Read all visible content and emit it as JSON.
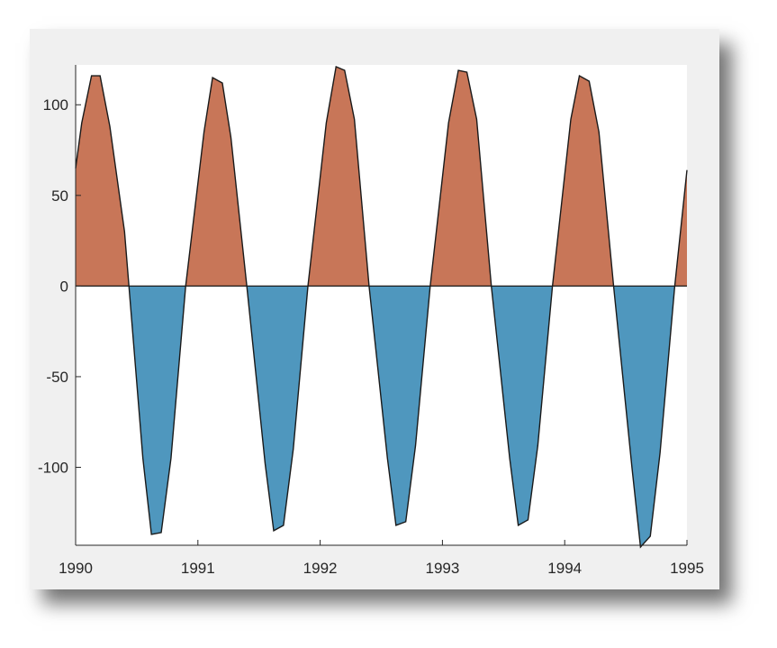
{
  "chart_data": {
    "type": "area",
    "title": "",
    "xlabel": "",
    "ylabel": "",
    "xlim": [
      1990,
      1995
    ],
    "ylim": [
      -143,
      122
    ],
    "xticks": [
      {
        "value": 1990,
        "label": "1990"
      },
      {
        "value": 1991,
        "label": "1991"
      },
      {
        "value": 1992,
        "label": "1992"
      },
      {
        "value": 1993,
        "label": "1993"
      },
      {
        "value": 1994,
        "label": "1994"
      },
      {
        "value": 1995,
        "label": "1995"
      }
    ],
    "yticks": [
      {
        "value": 100,
        "label": "100"
      },
      {
        "value": 50,
        "label": "50"
      },
      {
        "value": 0,
        "label": "0"
      },
      {
        "value": -50,
        "label": "-50"
      },
      {
        "value": -100,
        "label": "-100"
      }
    ],
    "grid": false,
    "positive_color": "#c87658",
    "negative_color": "#4f97be",
    "line_color": "#1a1a1a",
    "x": [
      1990.0,
      1990.05,
      1990.13,
      1990.2,
      1990.28,
      1990.4,
      1990.55,
      1990.62,
      1990.7,
      1990.78,
      1990.9,
      1991.05,
      1991.12,
      1991.2,
      1991.27,
      1991.4,
      1991.55,
      1991.62,
      1991.7,
      1991.78,
      1991.9,
      1992.05,
      1992.13,
      1992.2,
      1992.28,
      1992.4,
      1992.55,
      1992.62,
      1992.7,
      1992.78,
      1992.9,
      1993.05,
      1993.13,
      1993.2,
      1993.28,
      1993.4,
      1993.55,
      1993.62,
      1993.7,
      1993.78,
      1993.9,
      1994.05,
      1994.12,
      1994.2,
      1994.28,
      1994.4,
      1994.55,
      1994.62,
      1994.7,
      1994.78,
      1994.9,
      1995.0
    ],
    "y": [
      65,
      90,
      116,
      116,
      88,
      30,
      -95,
      -137,
      -136,
      -95,
      0,
      85,
      115,
      112,
      82,
      0,
      -98,
      -135,
      -132,
      -90,
      0,
      90,
      121,
      119,
      92,
      0,
      -95,
      -132,
      -130,
      -88,
      0,
      90,
      119,
      118,
      92,
      0,
      -95,
      -132,
      -129,
      -88,
      0,
      92,
      116,
      113,
      85,
      0,
      -100,
      -144,
      -138,
      -92,
      0,
      64
    ]
  }
}
